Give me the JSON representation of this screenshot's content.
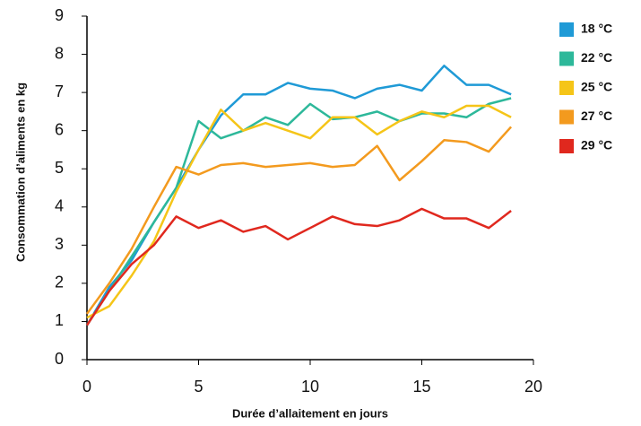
{
  "chart_data": {
    "type": "line",
    "x_label": "Durée d’allaitement en jours",
    "y_label": "Consommation d’aliments en kg",
    "x": [
      0,
      1,
      2,
      3,
      4,
      5,
      6,
      7,
      8,
      9,
      10,
      11,
      12,
      13,
      14,
      15,
      16,
      17,
      18,
      19
    ],
    "series": [
      {
        "name": "18 °C",
        "color": "#1f9ad6",
        "values": [
          0.9,
          1.9,
          2.6,
          3.6,
          4.5,
          5.5,
          6.4,
          6.95,
          6.95,
          7.25,
          7.1,
          7.05,
          6.85,
          7.1,
          7.2,
          7.05,
          7.7,
          7.2,
          7.2,
          6.95
        ]
      },
      {
        "name": "22 °C",
        "color": "#2db89a",
        "values": [
          0.9,
          1.8,
          2.7,
          3.6,
          4.5,
          6.25,
          5.8,
          6.0,
          6.35,
          6.15,
          6.7,
          6.3,
          6.35,
          6.5,
          6.25,
          6.45,
          6.45,
          6.35,
          6.7,
          6.85
        ]
      },
      {
        "name": "25 °C",
        "color": "#f5c518",
        "values": [
          1.1,
          1.4,
          2.2,
          3.1,
          4.4,
          5.5,
          6.55,
          6.0,
          6.2,
          6.0,
          5.8,
          6.35,
          6.35,
          5.9,
          6.25,
          6.5,
          6.35,
          6.65,
          6.65,
          6.35
        ]
      },
      {
        "name": "27 °C",
        "color": "#f39a1e",
        "values": [
          1.2,
          2.0,
          2.9,
          4.0,
          5.05,
          4.85,
          5.1,
          5.15,
          5.05,
          5.1,
          5.15,
          5.05,
          5.1,
          5.6,
          4.7,
          5.2,
          5.75,
          5.7,
          5.45,
          6.1
        ]
      },
      {
        "name": "29 °C",
        "color": "#e0281e",
        "values": [
          0.9,
          1.8,
          2.5,
          3.0,
          3.75,
          3.45,
          3.65,
          3.35,
          3.5,
          3.15,
          3.45,
          3.75,
          3.55,
          3.5,
          3.65,
          3.95,
          3.7,
          3.7,
          3.45,
          3.9
        ]
      }
    ],
    "xlim": [
      0,
      20
    ],
    "xticks": [
      0,
      5,
      10,
      15,
      20
    ],
    "ylim": [
      0,
      9
    ],
    "yticks": [
      0,
      1,
      2,
      3,
      4,
      5,
      6,
      7,
      8,
      9
    ],
    "legend": "right"
  }
}
